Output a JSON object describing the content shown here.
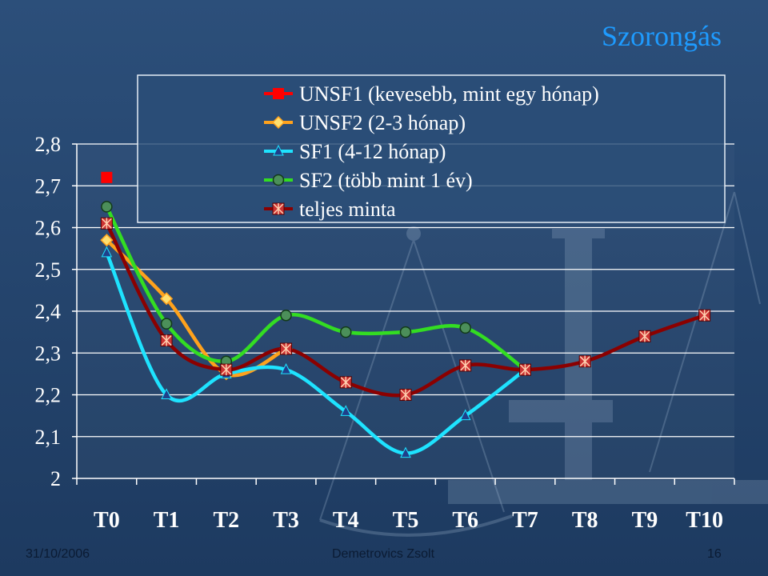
{
  "slide": {
    "title": "Szorongás",
    "footer_date": "31/10/2006",
    "footer_author": "Demetrovics Zsolt",
    "page_number": "16"
  },
  "chart_data": {
    "type": "line",
    "title": "",
    "xlabel": "",
    "ylabel": "",
    "categories": [
      "T0",
      "T1",
      "T2",
      "T3",
      "T4",
      "T5",
      "T6",
      "T7",
      "T8",
      "T9",
      "T10"
    ],
    "ylim": [
      2,
      2.8
    ],
    "yticks": [
      "2",
      "2,1",
      "2,2",
      "2,3",
      "2,4",
      "2,5",
      "2,6",
      "2,7",
      "2,8"
    ],
    "grid": "horizontal",
    "legend_position": "top",
    "series": [
      {
        "name": "UNSF1 (kevesebb, mint egy hónap)",
        "color": "#ff0000",
        "marker": "square",
        "values": [
          2.72,
          null,
          null,
          null,
          null,
          null,
          null,
          null,
          null,
          null,
          null
        ]
      },
      {
        "name": "UNSF2 (2-3 hónap)",
        "color": "#ffa21c",
        "marker": "diamond",
        "values": [
          2.57,
          2.43,
          2.25,
          2.31,
          null,
          null,
          null,
          null,
          null,
          null,
          null
        ]
      },
      {
        "name": "SF1 (4-12 hónap)",
        "color": "#1ee3ff",
        "marker": "triangle",
        "values": [
          2.54,
          2.2,
          2.25,
          2.26,
          2.16,
          2.06,
          2.15,
          2.26,
          null,
          null,
          null
        ]
      },
      {
        "name": "SF2 (több mint 1 év)",
        "color": "#33dd22",
        "marker": "circle",
        "values": [
          2.65,
          2.37,
          2.28,
          2.39,
          2.35,
          2.35,
          2.36,
          2.26,
          null,
          null,
          null
        ]
      },
      {
        "name": "teljes minta",
        "color": "#8b0000",
        "marker": "asterisk",
        "values": [
          2.61,
          2.33,
          2.26,
          2.31,
          2.23,
          2.2,
          2.27,
          2.26,
          2.28,
          2.34,
          2.39
        ]
      }
    ]
  }
}
